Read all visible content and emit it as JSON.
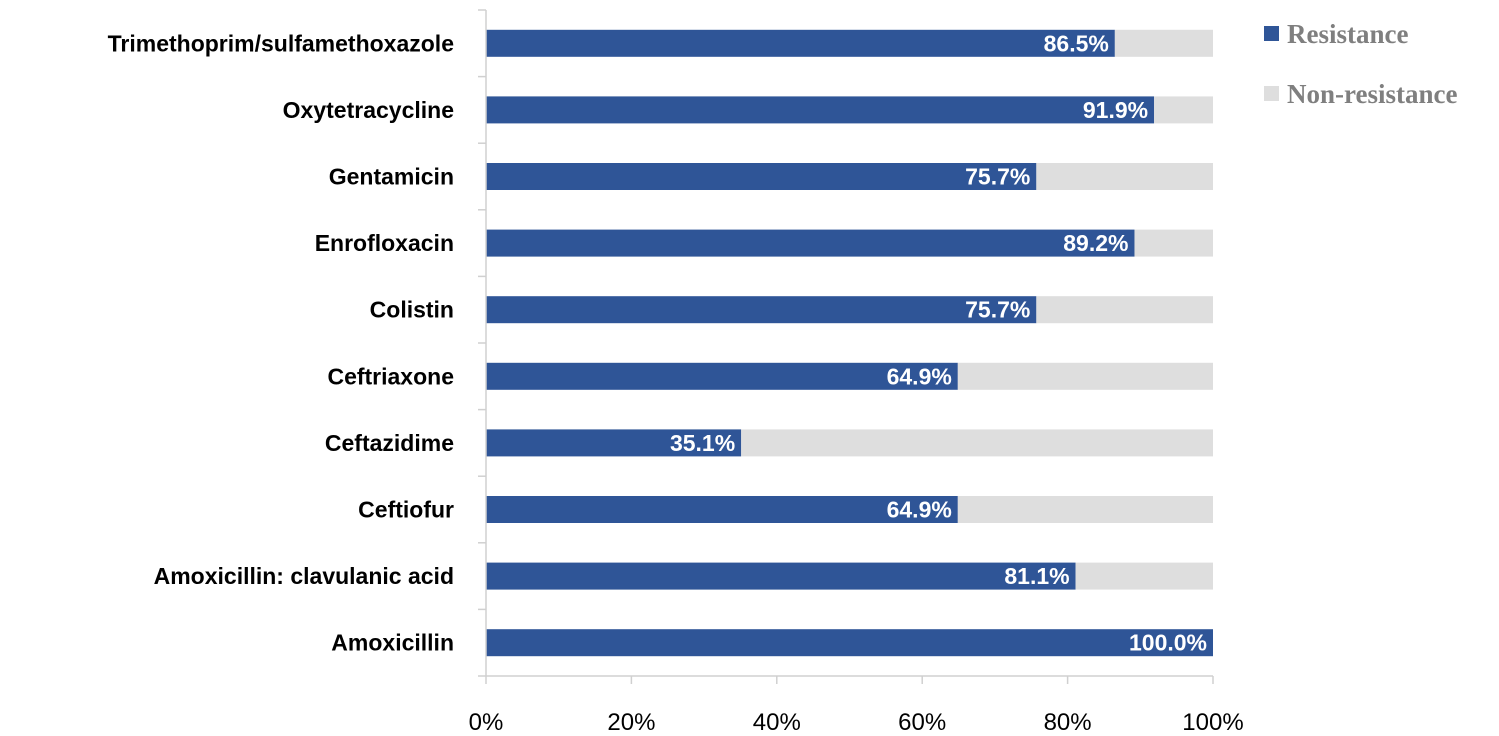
{
  "chart_data": {
    "type": "bar",
    "orientation": "horizontal",
    "stacked": true,
    "categories": [
      "Trimethoprim/sulfamethoxazole",
      "Oxytetracycline",
      "Gentamicin",
      "Enrofloxacin",
      "Colistin",
      "Ceftriaxone",
      "Ceftazidime",
      "Ceftiofur",
      "Amoxicillin: clavulanic acid",
      "Amoxicillin"
    ],
    "series": [
      {
        "name": "Resistance",
        "color": "#2f5597",
        "values": [
          86.5,
          91.9,
          75.7,
          89.2,
          75.7,
          64.9,
          35.1,
          64.9,
          81.1,
          100.0
        ],
        "data_labels": [
          "86.5%",
          "91.9%",
          "75.7%",
          "89.2%",
          "75.7%",
          "64.9%",
          "35.1%",
          "64.9%",
          "81.1%",
          "100.0%"
        ]
      },
      {
        "name": "Non-resistance",
        "color": "#dedede",
        "values": [
          13.5,
          8.1,
          24.3,
          10.8,
          24.3,
          35.1,
          64.9,
          35.1,
          18.9,
          0.0
        ]
      }
    ],
    "xlim": [
      0,
      100
    ],
    "x_ticks": [
      0,
      20,
      40,
      60,
      80,
      100
    ],
    "x_tick_labels": [
      "0%",
      "20%",
      "40%",
      "60%",
      "80%",
      "100%"
    ],
    "grid": false,
    "legend_position": "top-right"
  }
}
